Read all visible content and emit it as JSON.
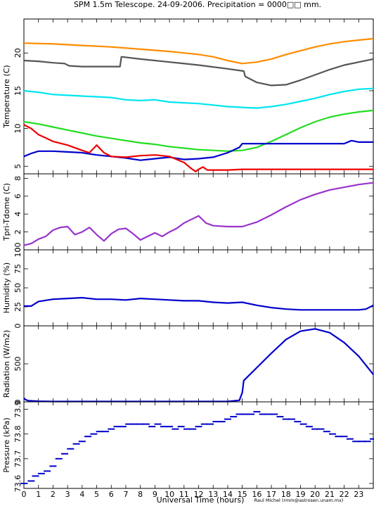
{
  "title": "SPM 1.5m Telescope. 24-09-2006. Precipitation = 0000□□ mm.",
  "xlabel": "Universal Time (hours)",
  "credit": "Raul Michel (rmm@astrosen.unam.mx)",
  "colors": {
    "orange": "#ff8c00",
    "gray": "#555555",
    "cyan": "#00e5ee",
    "green": "#22dd22",
    "blue": "#0000cc",
    "red": "#ee0000",
    "purple": "#9933cc"
  },
  "chart_data": [
    {
      "type": "line",
      "ylabel": "Temperature (C)",
      "xlim": [
        0,
        24
      ],
      "ylim": [
        4,
        24.5
      ],
      "x_ticks": [
        "0",
        "1",
        "2",
        "3",
        "4",
        "5",
        "6",
        "7",
        "8",
        "9",
        "10",
        "11",
        "12",
        "13",
        "14",
        "15",
        "16",
        "17",
        "18",
        "19",
        "20",
        "21",
        "22",
        "23"
      ],
      "y_ticks": [
        "5",
        "10",
        "15",
        "20"
      ],
      "series": [
        {
          "color": "orange",
          "x": [
            0,
            2,
            4,
            6,
            8,
            10,
            12,
            13,
            14,
            15,
            16,
            17,
            18,
            19,
            20,
            21,
            22,
            23,
            24
          ],
          "y": [
            21.3,
            21.2,
            21.0,
            20.8,
            20.5,
            20.2,
            19.8,
            19.5,
            19.0,
            18.6,
            18.8,
            19.2,
            19.8,
            20.3,
            20.8,
            21.2,
            21.5,
            21.7,
            21.9
          ]
        },
        {
          "color": "gray",
          "x": [
            0,
            1,
            2,
            2.8,
            3.1,
            4,
            5,
            6,
            6.6,
            6.7,
            8,
            10,
            12,
            14,
            15.1,
            15.2,
            15.6,
            16,
            17,
            18,
            19,
            20,
            21,
            22,
            23,
            24
          ],
          "y": [
            19.0,
            18.9,
            18.7,
            18.6,
            18.3,
            18.2,
            18.2,
            18.2,
            18.2,
            19.5,
            19.2,
            18.8,
            18.4,
            17.9,
            17.6,
            16.9,
            16.5,
            16.1,
            15.7,
            15.8,
            16.4,
            17.1,
            17.8,
            18.4,
            18.8,
            19.2
          ]
        },
        {
          "color": "cyan",
          "x": [
            0,
            1,
            2,
            3,
            4,
            5,
            6,
            7,
            8,
            9,
            10,
            11,
            12,
            13,
            14,
            15,
            16,
            17,
            18,
            19,
            20,
            21,
            22,
            23,
            24
          ],
          "y": [
            15.0,
            14.8,
            14.5,
            14.4,
            14.3,
            14.2,
            14.1,
            13.8,
            13.7,
            13.8,
            13.5,
            13.4,
            13.3,
            13.1,
            12.9,
            12.8,
            12.7,
            12.9,
            13.2,
            13.6,
            14.0,
            14.5,
            14.9,
            15.2,
            15.3
          ]
        },
        {
          "color": "green",
          "x": [
            0,
            1,
            2,
            3,
            4,
            5,
            6,
            7,
            8,
            9,
            10,
            11,
            12,
            13,
            14,
            15,
            16,
            17,
            18,
            19,
            20,
            21,
            22,
            23,
            24
          ],
          "y": [
            10.9,
            10.6,
            10.2,
            9.8,
            9.4,
            9.0,
            8.7,
            8.4,
            8.1,
            7.9,
            7.6,
            7.4,
            7.2,
            7.1,
            7.0,
            7.1,
            7.5,
            8.3,
            9.2,
            10.1,
            10.9,
            11.5,
            11.9,
            12.2,
            12.4
          ]
        },
        {
          "color": "blue",
          "x": [
            0,
            0.5,
            1,
            2,
            3,
            4,
            5,
            6,
            7,
            8,
            9,
            10,
            11,
            12,
            13,
            14,
            14.8,
            15,
            16,
            17,
            18,
            19,
            20,
            21,
            22,
            22.5,
            23,
            24
          ],
          "y": [
            6.3,
            6.7,
            7.0,
            7.0,
            6.9,
            6.8,
            6.5,
            6.3,
            6.1,
            5.8,
            6.0,
            6.2,
            5.9,
            6.0,
            6.2,
            6.8,
            7.5,
            8.0,
            8.0,
            8.0,
            8.0,
            8.0,
            8.0,
            8.0,
            8.0,
            8.4,
            8.2,
            8.2
          ]
        },
        {
          "color": "red",
          "x": [
            0,
            0.5,
            1,
            2,
            3,
            4,
            4.5,
            5,
            5.5,
            6,
            7,
            8,
            9,
            10,
            11,
            11.5,
            11.8,
            12,
            12.3,
            12.6,
            13,
            14,
            15,
            16,
            17,
            18,
            19,
            20,
            21,
            22,
            23,
            24
          ],
          "y": [
            10.5,
            10.0,
            9.2,
            8.3,
            7.8,
            7.1,
            6.8,
            7.8,
            6.8,
            6.3,
            6.2,
            6.4,
            6.5,
            6.3,
            5.5,
            4.7,
            4.3,
            4.6,
            4.9,
            4.5,
            4.5,
            4.5,
            4.6,
            4.6,
            4.6,
            4.6,
            4.6,
            4.6,
            4.6,
            4.6,
            4.6,
            4.6
          ]
        }
      ]
    },
    {
      "type": "line",
      "ylabel": "Tpri-Tdome (C)",
      "xlim": [
        0,
        24
      ],
      "ylim": [
        0,
        8.5
      ],
      "y_ticks": [
        "0",
        "2",
        "4",
        "6",
        "8"
      ],
      "series": [
        {
          "color": "purple",
          "x": [
            0,
            0.5,
            1,
            1.5,
            2,
            2.5,
            3,
            3.5,
            4,
            4.5,
            5,
            5.5,
            6,
            6.5,
            7,
            7.5,
            8,
            8.5,
            9,
            9.5,
            10,
            10.5,
            11,
            11.5,
            12,
            12.5,
            13,
            14,
            15,
            16,
            17,
            18,
            19,
            20,
            21,
            22,
            23,
            24
          ],
          "y": [
            0.5,
            0.7,
            1.2,
            1.5,
            2.2,
            2.5,
            2.6,
            1.7,
            2.0,
            2.5,
            1.7,
            1.0,
            1.8,
            2.3,
            2.4,
            1.8,
            1.1,
            1.5,
            1.9,
            1.5,
            2.0,
            2.4,
            3.0,
            3.4,
            3.8,
            3.0,
            2.7,
            2.6,
            2.6,
            3.1,
            3.9,
            4.8,
            5.6,
            6.2,
            6.7,
            7.0,
            7.3,
            7.5
          ]
        }
      ]
    },
    {
      "type": "line",
      "ylabel": "Humidity (%)",
      "xlim": [
        0,
        24
      ],
      "ylim": [
        0,
        100
      ],
      "y_ticks": [
        "0",
        "25",
        "50",
        "75",
        "100"
      ],
      "series": [
        {
          "color": "blue",
          "x": [
            0,
            0.5,
            1,
            2,
            3,
            4,
            5,
            6,
            7,
            8,
            9,
            10,
            11,
            12,
            13,
            14,
            15,
            16,
            17,
            18,
            19,
            20,
            21,
            22,
            23,
            23.5,
            24
          ],
          "y": [
            26,
            26,
            32,
            35,
            36,
            37,
            35,
            35,
            34,
            36,
            35,
            34,
            33,
            33,
            31,
            30,
            31,
            27,
            24,
            22,
            21,
            21,
            21,
            21,
            21,
            22,
            27
          ]
        }
      ]
    },
    {
      "type": "line",
      "ylabel": "Radiation (W/m2)",
      "xlim": [
        0,
        24
      ],
      "ylim": [
        0,
        1000
      ],
      "y_ticks": [
        "0",
        "500"
      ],
      "series": [
        {
          "color": "blue",
          "x": [
            0,
            0.1,
            0.3,
            1,
            2,
            3,
            4,
            5,
            6,
            7,
            8,
            9,
            10,
            11,
            12,
            13,
            14,
            14.8,
            15,
            15.1,
            16,
            17,
            18,
            19,
            20,
            21,
            22,
            23,
            24
          ],
          "y": [
            50,
            30,
            15,
            8,
            5,
            5,
            5,
            5,
            5,
            5,
            5,
            5,
            5,
            5,
            5,
            5,
            5,
            20,
            120,
            280,
            450,
            640,
            820,
            930,
            960,
            910,
            780,
            600,
            360
          ]
        }
      ]
    },
    {
      "type": "scatter",
      "ylabel": "Pressure (kPa)",
      "xlim": [
        0,
        24
      ],
      "ylim": [
        73.58,
        73.93
      ],
      "y_ticks": [
        "73.6",
        "73.7",
        "73.8",
        "73.9"
      ],
      "series": [
        {
          "color": "blue",
          "x": [
            0,
            0.5,
            0.8,
            1.2,
            1.6,
            2.0,
            2.4,
            2.8,
            3.2,
            3.6,
            4.0,
            4.4,
            4.8,
            5.2,
            5.6,
            6.0,
            6.4,
            6.8,
            7.2,
            7.6,
            8.0,
            8.4,
            8.8,
            9.2,
            9.6,
            10.0,
            10.4,
            10.8,
            11.2,
            11.6,
            12.0,
            12.4,
            12.8,
            13.2,
            13.6,
            14.0,
            14.4,
            14.8,
            15.2,
            15.6,
            16.0,
            16.4,
            16.8,
            17.2,
            17.6,
            18.0,
            18.4,
            18.8,
            19.2,
            19.6,
            20.0,
            20.4,
            20.8,
            21.2,
            21.6,
            22.0,
            22.4,
            22.8,
            23.2,
            23.6,
            24.0
          ],
          "y": [
            73.6,
            73.61,
            73.63,
            73.64,
            73.65,
            73.67,
            73.7,
            73.72,
            73.74,
            73.76,
            73.77,
            73.79,
            73.8,
            73.81,
            73.81,
            73.82,
            73.83,
            73.83,
            73.84,
            73.84,
            73.84,
            73.84,
            73.83,
            73.84,
            73.83,
            73.83,
            73.82,
            73.83,
            73.82,
            73.82,
            73.83,
            73.84,
            73.84,
            73.85,
            73.85,
            73.86,
            73.87,
            73.88,
            73.88,
            73.88,
            73.89,
            73.88,
            73.88,
            73.88,
            73.87,
            73.86,
            73.86,
            73.85,
            73.84,
            73.83,
            73.82,
            73.82,
            73.81,
            73.8,
            73.79,
            73.79,
            73.78,
            73.77,
            73.77,
            73.77,
            73.78
          ]
        }
      ]
    }
  ]
}
